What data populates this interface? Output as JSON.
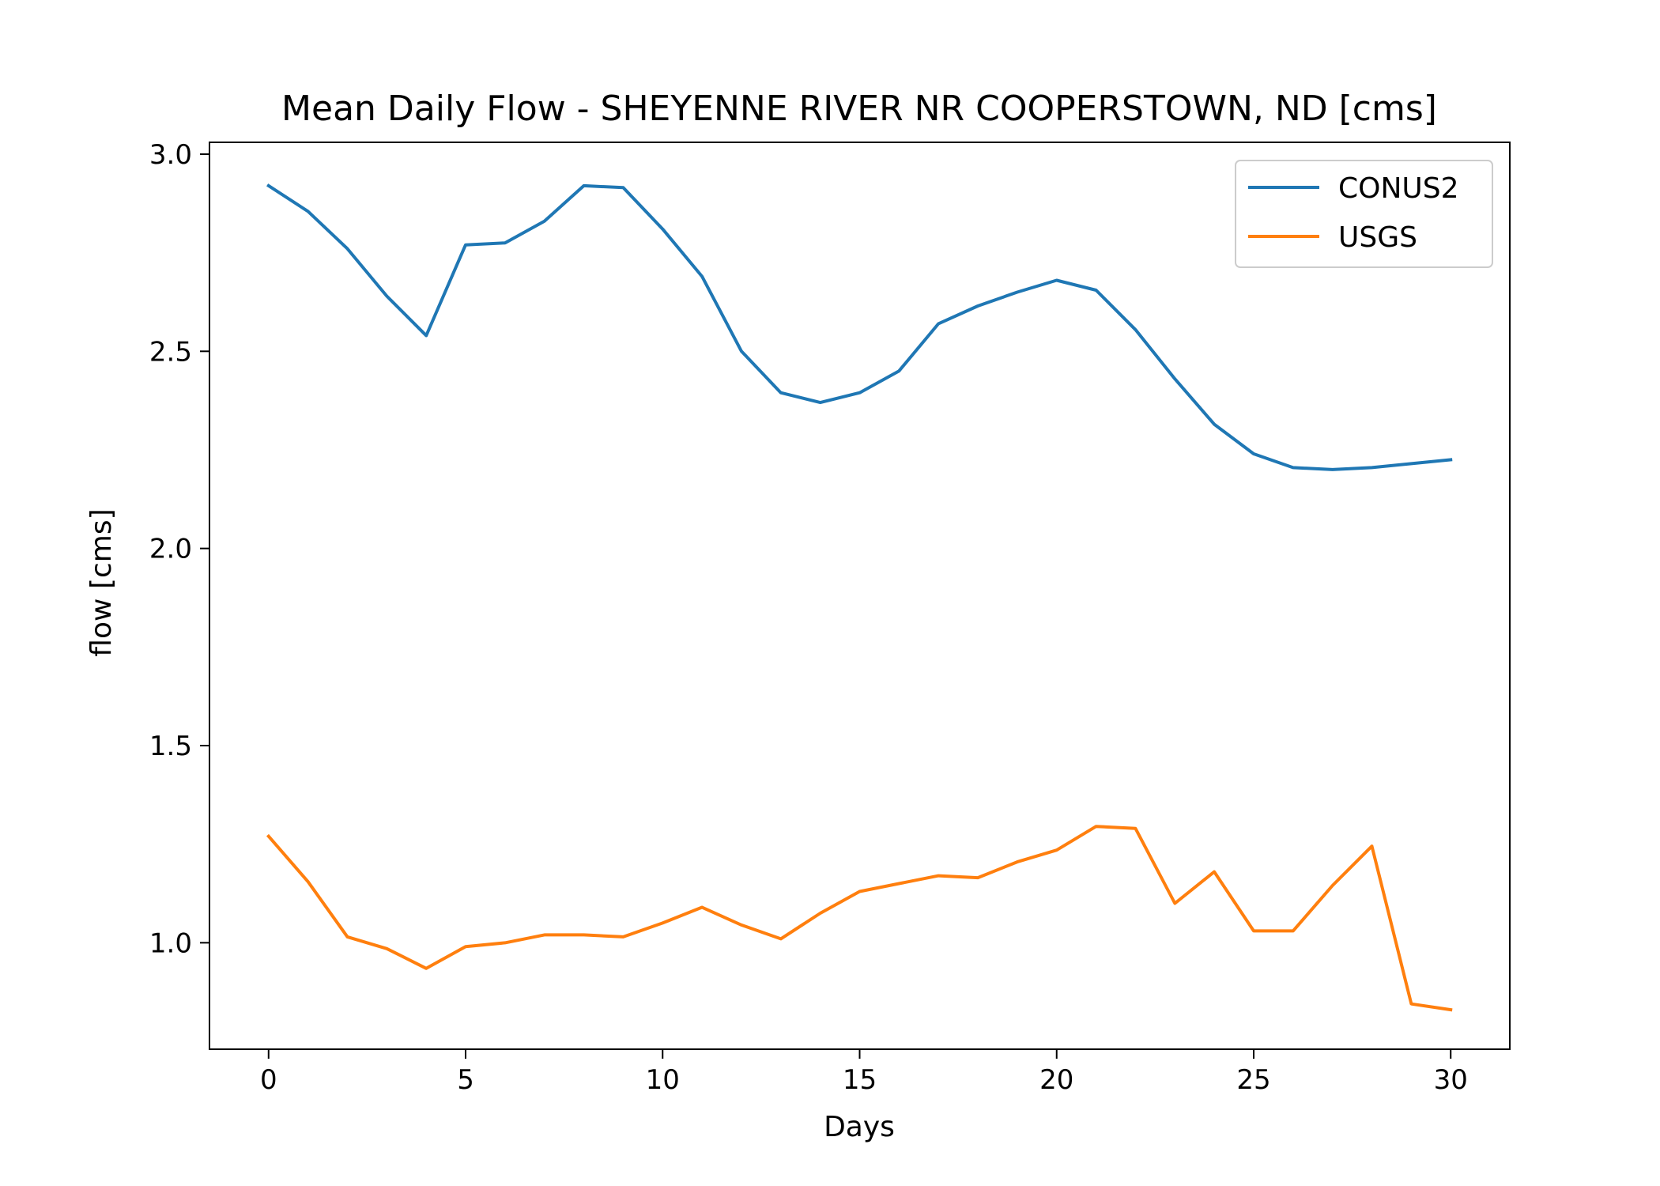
{
  "chart_data": {
    "type": "line",
    "title": "Mean Daily Flow - SHEYENNE RIVER NR COOPERSTOWN, ND [cms]",
    "xlabel": "Days",
    "ylabel": "flow [cms]",
    "xlim": [
      -1.5,
      31.5
    ],
    "ylim": [
      0.73,
      3.03
    ],
    "x_ticks": [
      0,
      5,
      10,
      15,
      20,
      25,
      30
    ],
    "x_tick_labels": [
      "0",
      "5",
      "10",
      "15",
      "20",
      "25",
      "30"
    ],
    "y_ticks": [
      1.0,
      1.5,
      2.0,
      2.5,
      3.0
    ],
    "y_tick_labels": [
      "1.0",
      "1.5",
      "2.0",
      "2.5",
      "3.0"
    ],
    "grid": false,
    "legend_position": "top-right",
    "x": [
      0,
      1,
      2,
      3,
      4,
      5,
      6,
      7,
      8,
      9,
      10,
      11,
      12,
      13,
      14,
      15,
      16,
      17,
      18,
      19,
      20,
      21,
      22,
      23,
      24,
      25,
      26,
      27,
      28,
      29,
      30
    ],
    "series": [
      {
        "name": "CONUS2",
        "color": "#1f77b4",
        "values": [
          2.92,
          2.855,
          2.76,
          2.64,
          2.54,
          2.77,
          2.775,
          2.83,
          2.92,
          2.915,
          2.81,
          2.69,
          2.5,
          2.395,
          2.37,
          2.395,
          2.45,
          2.57,
          2.615,
          2.65,
          2.68,
          2.655,
          2.555,
          2.43,
          2.315,
          2.24,
          2.205,
          2.2,
          2.205,
          2.215,
          2.225
        ]
      },
      {
        "name": "USGS",
        "color": "#ff7f0e",
        "values": [
          1.27,
          1.155,
          1.015,
          0.985,
          0.935,
          0.99,
          1.0,
          1.02,
          1.02,
          1.015,
          1.05,
          1.09,
          1.045,
          1.01,
          1.075,
          1.13,
          1.15,
          1.17,
          1.165,
          1.205,
          1.235,
          1.295,
          1.29,
          1.1,
          1.18,
          1.03,
          1.03,
          1.145,
          1.245,
          0.845,
          0.83
        ]
      }
    ]
  }
}
